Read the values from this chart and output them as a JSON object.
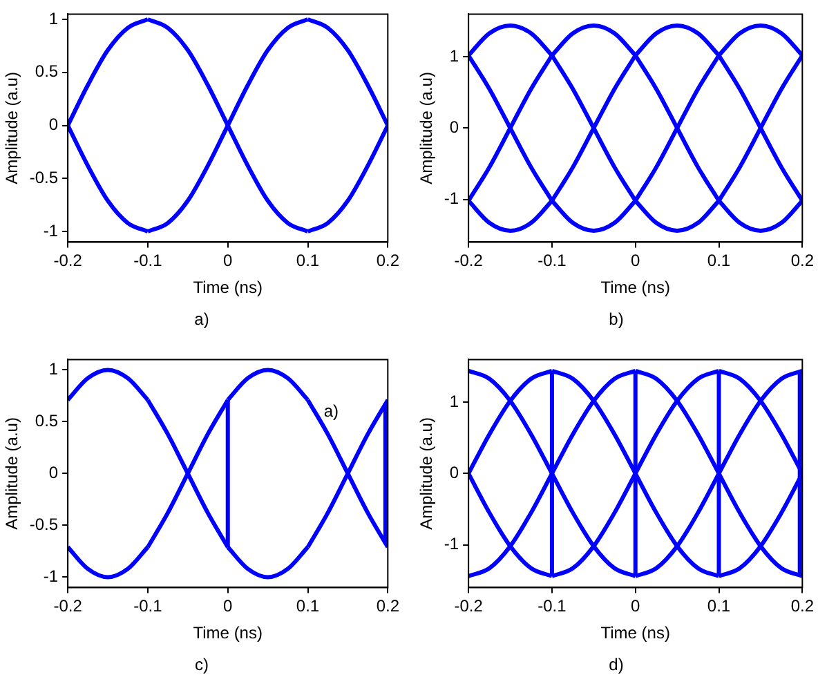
{
  "chart_data": [
    {
      "type": "line",
      "xlabel": "Time (ns)",
      "ylabel": "Amplitude (a.u)",
      "annotations": [
        "a)"
      ],
      "xlim": [
        -0.2,
        0.2
      ],
      "xticks": [
        -0.2,
        -0.1,
        0,
        0.1,
        0.2
      ],
      "ylim": [
        -1.1,
        1.05
      ],
      "yticks": [
        -1,
        -0.5,
        0,
        0.5,
        1
      ],
      "series": [
        {
          "color": "#0000ff",
          "x": [
            -0.2,
            -0.175,
            -0.15,
            -0.125,
            -0.1
          ],
          "values": [
            0,
            0.38,
            0.71,
            0.92,
            1
          ]
        },
        {
          "color": "#0000ff",
          "x": [
            -0.1,
            -0.075,
            -0.05,
            -0.025,
            0
          ],
          "values": [
            1,
            0.92,
            0.71,
            0.38,
            0
          ]
        },
        {
          "color": "#0000ff",
          "x": [
            0,
            0.025,
            0.05,
            0.075,
            0.1
          ],
          "values": [
            0,
            -0.38,
            -0.71,
            -0.92,
            -1
          ]
        },
        {
          "color": "#0000ff",
          "x": [
            0.1,
            0.125,
            0.15,
            0.175,
            0.2
          ],
          "values": [
            -1,
            -0.92,
            -0.71,
            -0.38,
            0
          ]
        },
        {
          "color": "#0000ff",
          "x": [
            -0.2,
            -0.175,
            -0.15,
            -0.125,
            -0.1
          ],
          "values": [
            0,
            -0.38,
            -0.71,
            -0.92,
            -1
          ]
        },
        {
          "color": "#0000ff",
          "x": [
            -0.1,
            -0.075,
            -0.05,
            -0.025,
            0
          ],
          "values": [
            -1,
            -0.92,
            -0.71,
            -0.38,
            0
          ]
        },
        {
          "color": "#0000ff",
          "x": [
            0,
            0.025,
            0.05,
            0.075,
            0.1
          ],
          "values": [
            0,
            0.38,
            0.71,
            0.92,
            1
          ]
        },
        {
          "color": "#0000ff",
          "x": [
            0.1,
            0.125,
            0.15,
            0.175,
            0.2
          ],
          "values": [
            1,
            0.92,
            0.71,
            0.38,
            0
          ]
        }
      ]
    },
    {
      "type": "line",
      "xlabel": "Time (ns)",
      "ylabel": "Amplitude (a.u)",
      "annotations": [
        "b)"
      ],
      "xlim": [
        -0.2,
        0.2
      ],
      "xticks": [
        -0.2,
        -0.1,
        0,
        0.1,
        0.2
      ],
      "ylim": [
        -1.6,
        1.6
      ],
      "yticks": [
        -1,
        0,
        1
      ],
      "series": [
        {
          "color": "#0000ff",
          "x": [
            -0.2,
            -0.175,
            -0.15,
            -0.125,
            -0.1
          ],
          "values": [
            1.02,
            1.33,
            1.44,
            1.33,
            1.02
          ]
        },
        {
          "color": "#0000ff",
          "x": [
            -0.1,
            -0.075,
            -0.05,
            -0.025,
            0
          ],
          "values": [
            1.02,
            0.55,
            0,
            -0.55,
            -1.02
          ]
        },
        {
          "color": "#0000ff",
          "x": [
            0,
            0.025,
            0.05,
            0.075,
            0.1
          ],
          "values": [
            -1.02,
            -1.33,
            -1.44,
            -1.33,
            -1.02
          ]
        },
        {
          "color": "#0000ff",
          "x": [
            0.1,
            0.125,
            0.15,
            0.175,
            0.2
          ],
          "values": [
            -1.02,
            -0.55,
            0,
            0.55,
            1.02
          ]
        },
        {
          "color": "#0000ff",
          "x": [
            -0.2,
            -0.175,
            -0.15,
            -0.125,
            -0.1
          ],
          "values": [
            -1.02,
            -0.55,
            0,
            0.55,
            1.02
          ]
        },
        {
          "color": "#0000ff",
          "x": [
            -0.1,
            -0.075,
            -0.05,
            -0.025,
            0
          ],
          "values": [
            1.02,
            1.33,
            1.44,
            1.33,
            1.02
          ]
        },
        {
          "color": "#0000ff",
          "x": [
            0,
            0.025,
            0.05,
            0.075,
            0.1
          ],
          "values": [
            1.02,
            0.55,
            0,
            -0.55,
            -1.02
          ]
        },
        {
          "color": "#0000ff",
          "x": [
            0.1,
            0.125,
            0.15,
            0.175,
            0.2
          ],
          "values": [
            -1.02,
            -1.33,
            -1.44,
            -1.33,
            -1.02
          ]
        },
        {
          "color": "#0000ff",
          "x": [
            -0.2,
            -0.175,
            -0.15,
            -0.125,
            -0.1
          ],
          "values": [
            -1.02,
            -1.33,
            -1.44,
            -1.33,
            -1.02
          ]
        },
        {
          "color": "#0000ff",
          "x": [
            -0.1,
            -0.075,
            -0.05,
            -0.025,
            0
          ],
          "values": [
            -1.02,
            -0.55,
            0,
            0.55,
            1.02
          ]
        },
        {
          "color": "#0000ff",
          "x": [
            0,
            0.025,
            0.05,
            0.075,
            0.1
          ],
          "values": [
            1.02,
            1.33,
            1.44,
            1.33,
            1.02
          ]
        },
        {
          "color": "#0000ff",
          "x": [
            0.1,
            0.125,
            0.15,
            0.175,
            0.2
          ],
          "values": [
            1.02,
            0.55,
            0,
            -0.55,
            -1.02
          ]
        },
        {
          "color": "#0000ff",
          "x": [
            -0.2,
            -0.175,
            -0.15,
            -0.125,
            -0.1
          ],
          "values": [
            1.02,
            0.55,
            0,
            -0.55,
            -1.02
          ]
        },
        {
          "color": "#0000ff",
          "x": [
            -0.1,
            -0.075,
            -0.05,
            -0.025,
            0
          ],
          "values": [
            -1.02,
            -1.33,
            -1.44,
            -1.33,
            -1.02
          ]
        },
        {
          "color": "#0000ff",
          "x": [
            0,
            0.025,
            0.05,
            0.075,
            0.1
          ],
          "values": [
            -1.02,
            -0.55,
            0,
            0.55,
            1.02
          ]
        },
        {
          "color": "#0000ff",
          "x": [
            0.1,
            0.125,
            0.15,
            0.175,
            0.2
          ],
          "values": [
            1.02,
            1.33,
            1.44,
            1.33,
            1.02
          ]
        }
      ]
    },
    {
      "type": "line",
      "xlabel": "Time (ns)",
      "ylabel": "Amplitude (a.u)",
      "annotations": [
        "c)",
        "a)"
      ],
      "xlim": [
        -0.2,
        0.2
      ],
      "xticks": [
        -0.2,
        -0.1,
        0,
        0.1,
        0.2
      ],
      "ylim": [
        -1.1,
        1.1
      ],
      "yticks": [
        -1,
        -0.5,
        0,
        0.5,
        1
      ],
      "series": [
        {
          "color": "#0000ff",
          "x": [
            -0.2,
            -0.175,
            -0.15,
            -0.125,
            -0.1
          ],
          "values": [
            0.71,
            0.92,
            1,
            0.92,
            0.71
          ]
        },
        {
          "color": "#0000ff",
          "x": [
            -0.1,
            -0.075,
            -0.05,
            -0.025,
            0
          ],
          "values": [
            0.71,
            0.38,
            0,
            -0.38,
            -0.71
          ]
        },
        {
          "color": "#0000ff",
          "x": [
            0,
            0.025,
            0.05,
            0.075,
            0.1
          ],
          "values": [
            -0.71,
            -0.92,
            -1,
            -0.92,
            -0.71
          ]
        },
        {
          "color": "#0000ff",
          "x": [
            0.1,
            0.125,
            0.15,
            0.175,
            0.2
          ],
          "values": [
            -0.71,
            -0.38,
            0,
            0.38,
            0.71
          ]
        },
        {
          "color": "#0000ff",
          "x": [
            -0.2,
            -0.175,
            -0.15,
            -0.125,
            -0.1
          ],
          "values": [
            -0.71,
            -0.92,
            -1,
            -0.92,
            -0.71
          ]
        },
        {
          "color": "#0000ff",
          "x": [
            -0.1,
            -0.075,
            -0.05,
            -0.025,
            0
          ],
          "values": [
            -0.71,
            -0.38,
            0,
            0.38,
            0.71
          ]
        },
        {
          "color": "#0000ff",
          "x": [
            0,
            0.025,
            0.05,
            0.075,
            0.1
          ],
          "values": [
            0.71,
            0.92,
            1,
            0.92,
            0.71
          ]
        },
        {
          "color": "#0000ff",
          "x": [
            0.1,
            0.125,
            0.15,
            0.175,
            0.2
          ],
          "values": [
            0.71,
            0.38,
            0,
            -0.38,
            -0.71
          ]
        },
        {
          "type": "line",
          "color": "#0000ff",
          "x": [
            0,
            0
          ],
          "values": [
            -0.71,
            0.71
          ]
        },
        {
          "type": "line",
          "color": "#0000ff",
          "x": [
            0.197,
            0.197
          ],
          "values": [
            -0.68,
            0.68
          ]
        }
      ]
    },
    {
      "type": "line",
      "xlabel": "Time (ns)",
      "ylabel": "Amplitude (a.u)",
      "annotations": [
        "d)"
      ],
      "xlim": [
        -0.2,
        0.2
      ],
      "xticks": [
        -0.2,
        -0.1,
        0,
        0.1,
        0.2
      ],
      "ylim": [
        -1.6,
        1.6
      ],
      "yticks": [
        -1,
        0,
        1
      ],
      "series": [
        {
          "color": "#0000ff",
          "x": [
            -0.2,
            -0.175,
            -0.15,
            -0.125,
            -0.1
          ],
          "values": [
            -1.44,
            -1.33,
            -1.02,
            -0.55,
            0
          ]
        },
        {
          "color": "#0000ff",
          "x": [
            -0.1,
            -0.075,
            -0.05,
            -0.025,
            0
          ],
          "values": [
            0,
            0.55,
            1.02,
            1.33,
            1.44
          ]
        },
        {
          "color": "#0000ff",
          "x": [
            0,
            0.025,
            0.05,
            0.075,
            0.1
          ],
          "values": [
            1.44,
            1.33,
            1.02,
            0.55,
            0
          ]
        },
        {
          "color": "#0000ff",
          "x": [
            0.1,
            0.125,
            0.15,
            0.175,
            0.2
          ],
          "values": [
            0,
            -0.55,
            -1.02,
            -1.33,
            -1.44
          ]
        },
        {
          "color": "#0000ff",
          "x": [
            -0.2,
            -0.175,
            -0.15,
            -0.125,
            -0.1
          ],
          "values": [
            0,
            -0.55,
            -1.02,
            -1.33,
            -1.44
          ]
        },
        {
          "color": "#0000ff",
          "x": [
            -0.1,
            -0.075,
            -0.05,
            -0.025,
            0
          ],
          "values": [
            -1.44,
            -1.33,
            -1.02,
            -0.55,
            0
          ]
        },
        {
          "color": "#0000ff",
          "x": [
            0,
            0.025,
            0.05,
            0.075,
            0.1
          ],
          "values": [
            0,
            0.55,
            1.02,
            1.33,
            1.44
          ]
        },
        {
          "color": "#0000ff",
          "x": [
            0.1,
            0.125,
            0.15,
            0.175,
            0.2
          ],
          "values": [
            1.44,
            1.33,
            1.02,
            0.55,
            0
          ]
        },
        {
          "color": "#0000ff",
          "x": [
            -0.2,
            -0.175,
            -0.15,
            -0.125,
            -0.1
          ],
          "values": [
            1.44,
            1.33,
            1.02,
            0.55,
            0
          ]
        },
        {
          "color": "#0000ff",
          "x": [
            -0.1,
            -0.075,
            -0.05,
            -0.025,
            0
          ],
          "values": [
            0,
            -0.55,
            -1.02,
            -1.33,
            -1.44
          ]
        },
        {
          "color": "#0000ff",
          "x": [
            0,
            0.025,
            0.05,
            0.075,
            0.1
          ],
          "values": [
            -1.44,
            -1.33,
            -1.02,
            -0.55,
            0
          ]
        },
        {
          "color": "#0000ff",
          "x": [
            0.1,
            0.125,
            0.15,
            0.175,
            0.2
          ],
          "values": [
            0,
            0.55,
            1.02,
            1.33,
            1.44
          ]
        },
        {
          "color": "#0000ff",
          "x": [
            -0.2,
            -0.175,
            -0.15,
            -0.125,
            -0.1
          ],
          "values": [
            0,
            0.55,
            1.02,
            1.33,
            1.44
          ]
        },
        {
          "color": "#0000ff",
          "x": [
            -0.1,
            -0.075,
            -0.05,
            -0.025,
            0
          ],
          "values": [
            1.44,
            1.33,
            1.02,
            0.55,
            0
          ]
        },
        {
          "color": "#0000ff",
          "x": [
            0,
            0.025,
            0.05,
            0.075,
            0.1
          ],
          "values": [
            0,
            -0.55,
            -1.02,
            -1.33,
            -1.44
          ]
        },
        {
          "color": "#0000ff",
          "x": [
            0.1,
            0.125,
            0.15,
            0.175,
            0.2
          ],
          "values": [
            -1.44,
            -1.33,
            -1.02,
            -0.55,
            0
          ]
        },
        {
          "type": "line",
          "color": "#0000ff",
          "x": [
            -0.1,
            -0.1
          ],
          "values": [
            -1.44,
            1.44
          ]
        },
        {
          "type": "line",
          "color": "#0000ff",
          "x": [
            0,
            0
          ],
          "values": [
            -1.44,
            1.44
          ]
        },
        {
          "type": "line",
          "color": "#0000ff",
          "x": [
            0.1,
            0.1
          ],
          "values": [
            -1.44,
            1.44
          ]
        },
        {
          "type": "line",
          "color": "#0000ff",
          "x": [
            0.197,
            0.197
          ],
          "values": [
            -1.44,
            1.44
          ]
        }
      ]
    }
  ]
}
